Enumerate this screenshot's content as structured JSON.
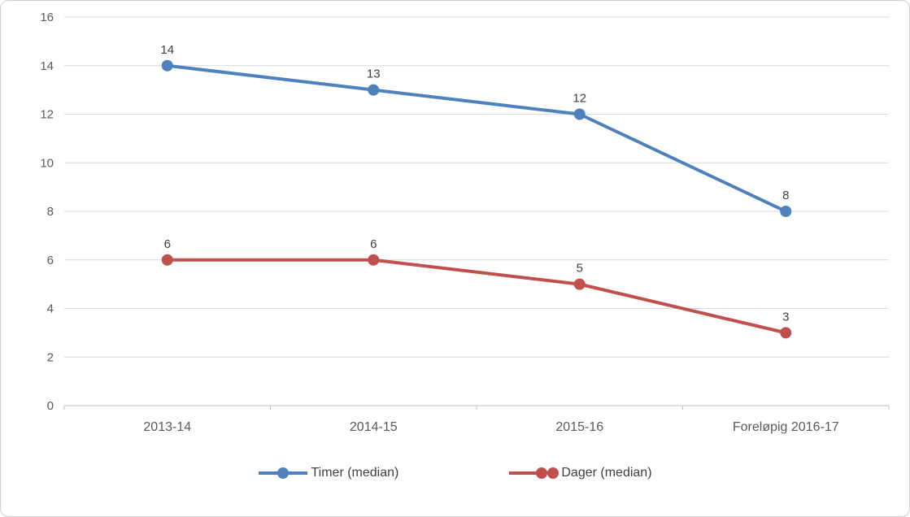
{
  "chart_data": {
    "type": "line",
    "categories": [
      "2013-14",
      "2014-15",
      "2015-16",
      "Foreløpig 2016-17"
    ],
    "series": [
      {
        "name": "Timer (median)",
        "values": [
          14,
          13,
          12,
          8
        ],
        "color": "#4F81BD"
      },
      {
        "name": "Dager (median)",
        "values": [
          6,
          6,
          5,
          3
        ],
        "color": "#C0504D"
      }
    ],
    "title": "",
    "xlabel": "",
    "ylabel": "",
    "ylim": [
      0,
      16
    ],
    "ytick_step": 2,
    "yticks": [
      0,
      2,
      4,
      6,
      8,
      10,
      12,
      14,
      16
    ],
    "grid": true,
    "gridline_color": "#D9D9D9",
    "axis_line_color": "#BFBFBF",
    "axis_label_color": "#595959",
    "data_label_color": "#404040",
    "legend_position": "bottom",
    "markers": true,
    "data_labels": true
  }
}
